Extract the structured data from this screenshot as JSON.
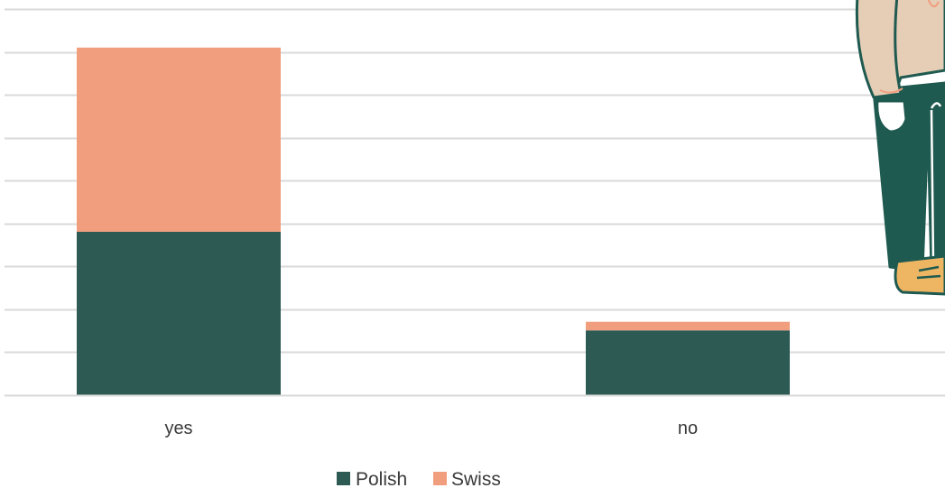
{
  "chart_data": {
    "type": "bar",
    "stacked": true,
    "categories": [
      "yes",
      "no"
    ],
    "series": [
      {
        "name": "Polish",
        "values": [
          38,
          15
        ],
        "color": "#2d5b54"
      },
      {
        "name": "Swiss",
        "values": [
          43,
          2
        ],
        "color": "#f19e7f"
      }
    ],
    "ylim": [
      0,
      90
    ],
    "grid": true,
    "legend_position": "bottom"
  },
  "decoration": {
    "illustration": "person-illustration",
    "colors": {
      "skin_shirt": "#e6cdb6",
      "trousers": "#1f5a50",
      "shoe": "#eeb563",
      "outline": "#1f5a50"
    }
  }
}
